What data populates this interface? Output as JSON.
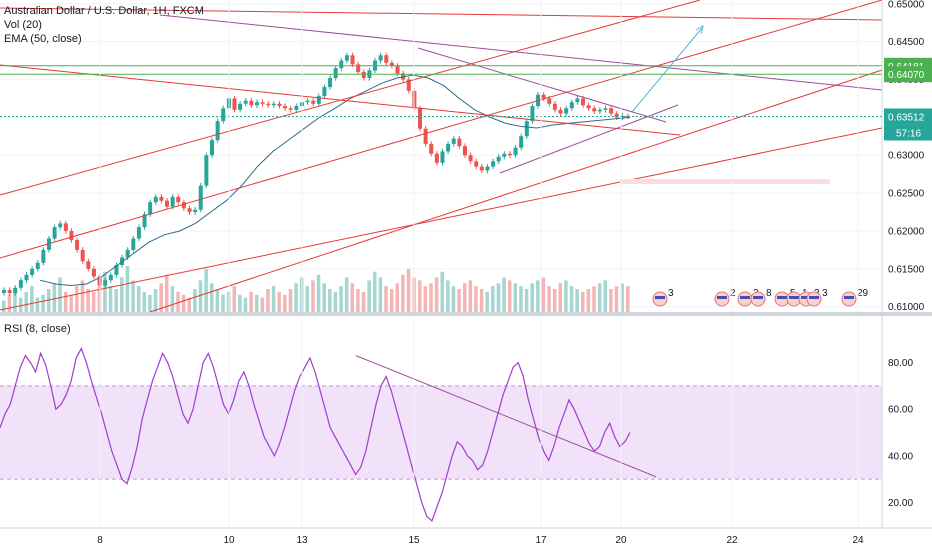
{
  "legend": {
    "title": "Australian Dollar / U.S. Dollar, 1H, FXCM",
    "vol": "Vol (20)",
    "ema": "EMA (50, close)",
    "rsi": "RSI (8, close)"
  },
  "chart_data": [
    {
      "type": "candlestick",
      "title": "Australian Dollar / U.S. Dollar, 1H, FXCM",
      "x_ticks": [
        "8",
        "10",
        "13",
        "15",
        "17",
        "20",
        "22",
        "24"
      ],
      "y_ticks": [
        "0.61000",
        "0.61500",
        "0.62000",
        "0.62500",
        "0.63000",
        "0.63500",
        "0.64000",
        "0.64500",
        "0.65000"
      ],
      "ylim": [
        0.6093,
        0.6505
      ],
      "price_labels": [
        {
          "value": 0.64181,
          "label": "0.64181",
          "color": "#4caf50"
        },
        {
          "value": 0.6407,
          "label": "0.64070",
          "color": "#4caf50"
        },
        {
          "value": 0.63512,
          "label": "0.63512",
          "color": "#26a69a"
        }
      ],
      "countdown": "57:16",
      "close_series": [
        0.6122,
        0.6118,
        0.6125,
        0.6135,
        0.6142,
        0.615,
        0.6158,
        0.6175,
        0.619,
        0.6205,
        0.621,
        0.62,
        0.6188,
        0.6175,
        0.616,
        0.615,
        0.614,
        0.6128,
        0.6135,
        0.6142,
        0.6155,
        0.6165,
        0.6175,
        0.619,
        0.6205,
        0.6222,
        0.6238,
        0.6245,
        0.624,
        0.6232,
        0.6245,
        0.6238,
        0.623,
        0.6225,
        0.6228,
        0.626,
        0.63,
        0.632,
        0.6345,
        0.6362,
        0.6375,
        0.636,
        0.6368,
        0.6372,
        0.6366,
        0.637,
        0.6368,
        0.6366,
        0.6368,
        0.6365,
        0.6362,
        0.636,
        0.6365,
        0.637,
        0.6372,
        0.6368,
        0.6378,
        0.639,
        0.6402,
        0.6415,
        0.6425,
        0.6432,
        0.642,
        0.641,
        0.6402,
        0.6412,
        0.6425,
        0.6432,
        0.6422,
        0.6418,
        0.6408,
        0.64,
        0.6385,
        0.6362,
        0.6335,
        0.6315,
        0.6302,
        0.629,
        0.6305,
        0.6315,
        0.6322,
        0.6312,
        0.63,
        0.6292,
        0.6285,
        0.628,
        0.6285,
        0.6292,
        0.6298,
        0.6302,
        0.63,
        0.631,
        0.6325,
        0.6345,
        0.6365,
        0.638,
        0.6375,
        0.6368,
        0.636,
        0.6355,
        0.6362,
        0.637,
        0.6375,
        0.6366,
        0.6362,
        0.6358,
        0.636,
        0.6362,
        0.6355,
        0.635,
        0.6352,
        0.6351
      ],
      "ema_series": [
        0.6135,
        0.613,
        0.6128,
        0.613,
        0.614,
        0.6155,
        0.617,
        0.6185,
        0.6195,
        0.62,
        0.621,
        0.6225,
        0.624,
        0.626,
        0.6285,
        0.6305,
        0.632,
        0.6335,
        0.635,
        0.6362,
        0.6375,
        0.6385,
        0.6395,
        0.6402,
        0.6406,
        0.6402,
        0.6392,
        0.6375,
        0.636,
        0.635,
        0.6342,
        0.6338,
        0.6336,
        0.634,
        0.6342,
        0.6344,
        0.6346,
        0.6348,
        0.635
      ],
      "volume_series": [
        4,
        6,
        8,
        5,
        7,
        9,
        5,
        6,
        8,
        10,
        12,
        7,
        6,
        9,
        11,
        8,
        7,
        10,
        14,
        9,
        8,
        12,
        16,
        11,
        9,
        7,
        6,
        8,
        10,
        13,
        9,
        7,
        6,
        5,
        8,
        11,
        15,
        10,
        8,
        6,
        7,
        9,
        6,
        5,
        7,
        6,
        5,
        8,
        9,
        7,
        6,
        8,
        10,
        12,
        9,
        11,
        13,
        10,
        8,
        7,
        9,
        12,
        10,
        8,
        7,
        11,
        14,
        12,
        9,
        8,
        10,
        13,
        15,
        12,
        11,
        9,
        10,
        12,
        14,
        11,
        9,
        8,
        10,
        11,
        9,
        8,
        7,
        9,
        10,
        12,
        11,
        10,
        9,
        8,
        10,
        11,
        12,
        9,
        8,
        10,
        11,
        9,
        8,
        7,
        8,
        9,
        10,
        11,
        8,
        9,
        10,
        9,
        8,
        7,
        6
      ]
    },
    {
      "type": "line",
      "title": "RSI (8, close)",
      "y_ticks": [
        "20.00",
        "40.00",
        "60.00",
        "80.00"
      ],
      "ylim": [
        9,
        100
      ],
      "band": [
        30,
        70
      ],
      "values": [
        52,
        58,
        62,
        70,
        78,
        83,
        80,
        76,
        84,
        79,
        70,
        60,
        62,
        66,
        72,
        82,
        86,
        80,
        72,
        65,
        58,
        50,
        42,
        36,
        30,
        28,
        35,
        44,
        56,
        64,
        72,
        78,
        84,
        80,
        74,
        66,
        58,
        54,
        60,
        70,
        80,
        84,
        78,
        70,
        62,
        58,
        64,
        72,
        76,
        70,
        62,
        55,
        48,
        44,
        40,
        45,
        52,
        60,
        68,
        74,
        78,
        82,
        76,
        68,
        60,
        52,
        48,
        44,
        40,
        36,
        32,
        35,
        42,
        52,
        62,
        70,
        74,
        68,
        60,
        52,
        44,
        36,
        28,
        20,
        14,
        12,
        18,
        24,
        32,
        40,
        46,
        44,
        40,
        38,
        34,
        36,
        42,
        50,
        58,
        66,
        72,
        78,
        80,
        74,
        64,
        56,
        48,
        42,
        38,
        44,
        52,
        58,
        64,
        60,
        55,
        50,
        45,
        42,
        44,
        50,
        54,
        48,
        44,
        46,
        50
      ]
    }
  ],
  "indicator_markers": [
    {
      "count": "3"
    },
    {
      "count": "2"
    },
    {
      "count": "3"
    },
    {
      "count": "8"
    },
    {
      "count": "5"
    },
    {
      "count": "1"
    },
    {
      "count": "3"
    },
    {
      "count": "3"
    },
    {
      "count": "29"
    }
  ]
}
